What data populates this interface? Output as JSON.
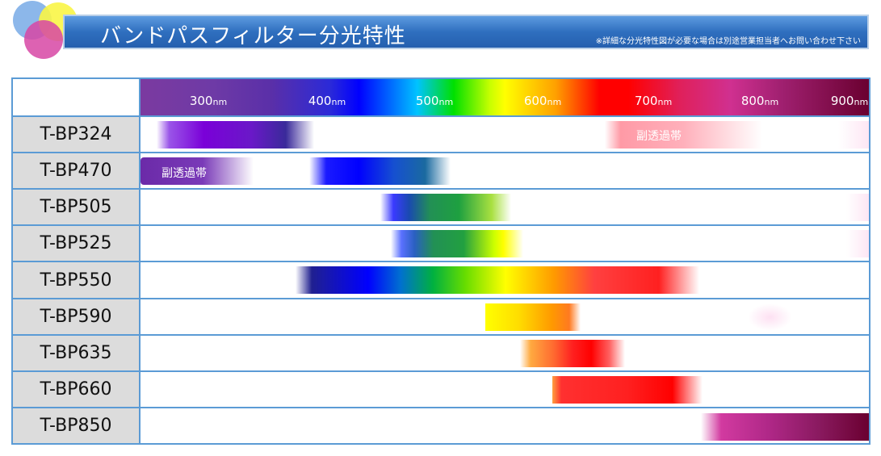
{
  "header": {
    "title": "バンドパスフィルター分光特性",
    "note": "※詳細な分光特性図が必要な場合は別途営業担当者へお問い合わせ下さい"
  },
  "wavelength_axis": {
    "unit": "nm",
    "ticks": [
      "300",
      "400",
      "500",
      "600",
      "700",
      "800",
      "900"
    ]
  },
  "filters": [
    {
      "name": "T-BP324",
      "label": "副透過帯"
    },
    {
      "name": "T-BP470",
      "label": "副透過帯"
    },
    {
      "name": "T-BP505"
    },
    {
      "name": "T-BP525"
    },
    {
      "name": "T-BP550"
    },
    {
      "name": "T-BP590"
    },
    {
      "name": "T-BP635"
    },
    {
      "name": "T-BP660"
    },
    {
      "name": "T-BP850"
    }
  ]
}
